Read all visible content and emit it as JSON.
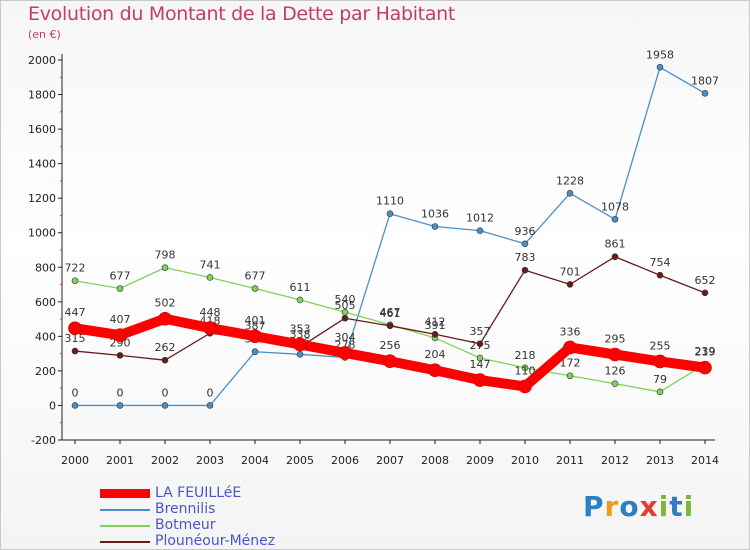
{
  "chart_data": {
    "type": "line",
    "title": "Evolution du Montant de la Dette par Habitant",
    "subtitle": "(en €)",
    "x": [
      "2000",
      "2001",
      "2002",
      "2003",
      "2004",
      "2005",
      "2006",
      "2007",
      "2008",
      "2009",
      "2010",
      "2011",
      "2012",
      "2013",
      "2014"
    ],
    "ylim": [
      -200,
      2000
    ],
    "yticks": [
      -200,
      0,
      200,
      400,
      600,
      800,
      1000,
      1200,
      1400,
      1600,
      1800,
      2000
    ],
    "grid": false,
    "legend_position": "bottom-left",
    "series": [
      {
        "name": "LA FEUILLéE",
        "color": "#ff0000",
        "values": [
          447,
          407,
          502,
          448,
          401,
          353,
          304,
          256,
          204,
          147,
          110,
          336,
          295,
          255,
          219
        ]
      },
      {
        "name": "Brennilis",
        "color": "#4a90c8",
        "values": [
          0,
          0,
          0,
          0,
          311,
          296,
          278,
          1110,
          1036,
          1012,
          936,
          1228,
          1078,
          1958,
          1807
        ]
      },
      {
        "name": "Botmeur",
        "color": "#7fd35a",
        "values": [
          722,
          677,
          798,
          741,
          677,
          611,
          540,
          467,
          391,
          275,
          218,
          172,
          126,
          79,
          239
        ]
      },
      {
        "name": "Plounéour-Ménez",
        "color": "#6b1a1a",
        "values": [
          315,
          290,
          262,
          418,
          387,
          338,
          505,
          461,
          412,
          357,
          783,
          701,
          861,
          754,
          652
        ]
      }
    ]
  },
  "logo": {
    "letters": [
      "P",
      "r",
      "o",
      "x",
      "i",
      "t",
      "i"
    ],
    "colors": [
      "#2c7fc4",
      "#f29a1d",
      "#2c7fc4",
      "#e63b2e",
      "#7ab83a",
      "#2c7fc4",
      "#7ab83a"
    ]
  }
}
